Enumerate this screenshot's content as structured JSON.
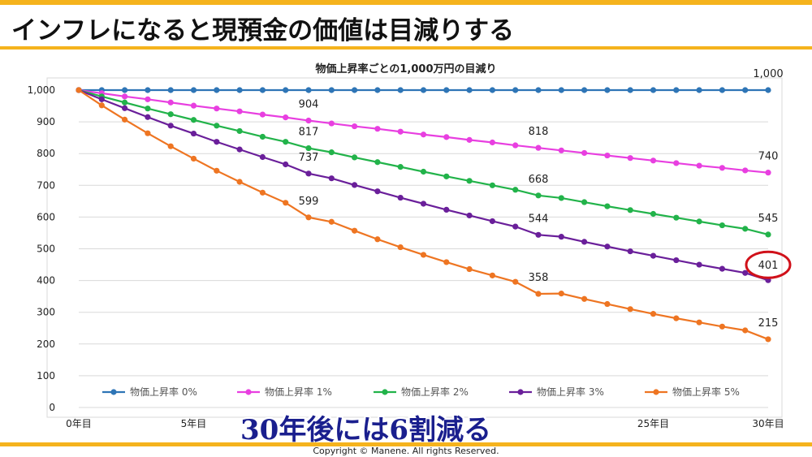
{
  "header": {
    "title": "インフレになると現預金の価値は目減りする"
  },
  "overlay_caption": "30年後には6割減る",
  "footer": {
    "copyright": "Copyright © Manene. All rights Reserved."
  },
  "colors": {
    "accent": "#f5b31d",
    "highlight": "#d0111a",
    "caption": "#1a1f8e"
  },
  "chart_data": {
    "type": "line",
    "title": "物価上昇率ごとの1,000万円の目減り",
    "xlabel": "",
    "ylabel": "",
    "ylim": [
      0,
      1000
    ],
    "yticks": [
      "0",
      "100",
      "200",
      "300",
      "400",
      "500",
      "600",
      "700",
      "800",
      "900",
      "1,000"
    ],
    "xticks": [
      {
        "x": 0,
        "label": "0年目"
      },
      {
        "x": 5,
        "label": "5年目"
      },
      {
        "x": 25,
        "label": "25年目"
      },
      {
        "x": 30,
        "label": "30年目"
      }
    ],
    "x": [
      0,
      1,
      2,
      3,
      4,
      5,
      6,
      7,
      8,
      9,
      10,
      11,
      12,
      13,
      14,
      15,
      16,
      17,
      18,
      19,
      20,
      21,
      22,
      23,
      24,
      25,
      26,
      27,
      28,
      29,
      30
    ],
    "legend_position": "bottom",
    "series": [
      {
        "name": "物価上昇率 0%",
        "color": "#2e75b6",
        "values": [
          1000,
          1000,
          1000,
          1000,
          1000,
          1000,
          1000,
          1000,
          1000,
          1000,
          1000,
          1000,
          1000,
          1000,
          1000,
          1000,
          1000,
          1000,
          1000,
          1000,
          1000,
          1000,
          1000,
          1000,
          1000,
          1000,
          1000,
          1000,
          1000,
          1000,
          1000
        ]
      },
      {
        "name": "物価上昇率 1%",
        "color": "#e83fe0",
        "values": [
          1000,
          990,
          980,
          971,
          961,
          951,
          942,
          933,
          923,
          914,
          904,
          895,
          886,
          878,
          869,
          860,
          852,
          843,
          835,
          826,
          818,
          810,
          802,
          794,
          786,
          778,
          770,
          762,
          755,
          747,
          740
        ]
      },
      {
        "name": "物価上昇率 2%",
        "color": "#22b34a",
        "values": [
          1000,
          980,
          961,
          942,
          924,
          906,
          888,
          871,
          853,
          837,
          817,
          804,
          788,
          773,
          758,
          743,
          728,
          714,
          700,
          686,
          668,
          660,
          647,
          634,
          622,
          610,
          598,
          586,
          574,
          563,
          545
        ]
      },
      {
        "name": "物価上昇率 3%",
        "color": "#6a1f9a",
        "values": [
          1000,
          971,
          943,
          915,
          888,
          863,
          837,
          813,
          789,
          766,
          737,
          722,
          701,
          681,
          661,
          642,
          623,
          605,
          587,
          570,
          544,
          538,
          522,
          507,
          492,
          478,
          464,
          450,
          437,
          424,
          401
        ]
      },
      {
        "name": "物価上昇率 5%",
        "color": "#ee7522",
        "values": [
          1000,
          952,
          907,
          864,
          823,
          784,
          746,
          711,
          677,
          645,
          599,
          585,
          557,
          530,
          505,
          481,
          458,
          436,
          416,
          396,
          358,
          359,
          342,
          326,
          310,
          295,
          281,
          268,
          255,
          243,
          215
        ]
      }
    ],
    "data_labels": [
      {
        "series": 0,
        "x": 30,
        "text": "1,000"
      },
      {
        "series": 1,
        "x": 10,
        "text": "904"
      },
      {
        "series": 1,
        "x": 20,
        "text": "818"
      },
      {
        "series": 1,
        "x": 30,
        "text": "740"
      },
      {
        "series": 2,
        "x": 10,
        "text": "817"
      },
      {
        "series": 2,
        "x": 20,
        "text": "668"
      },
      {
        "series": 2,
        "x": 30,
        "text": "545"
      },
      {
        "series": 3,
        "x": 10,
        "text": "737"
      },
      {
        "series": 3,
        "x": 20,
        "text": "544"
      },
      {
        "series": 3,
        "x": 30,
        "text": "401",
        "highlight": true
      },
      {
        "series": 4,
        "x": 10,
        "text": "599"
      },
      {
        "series": 4,
        "x": 20,
        "text": "358"
      },
      {
        "series": 4,
        "x": 30,
        "text": "215"
      }
    ]
  }
}
